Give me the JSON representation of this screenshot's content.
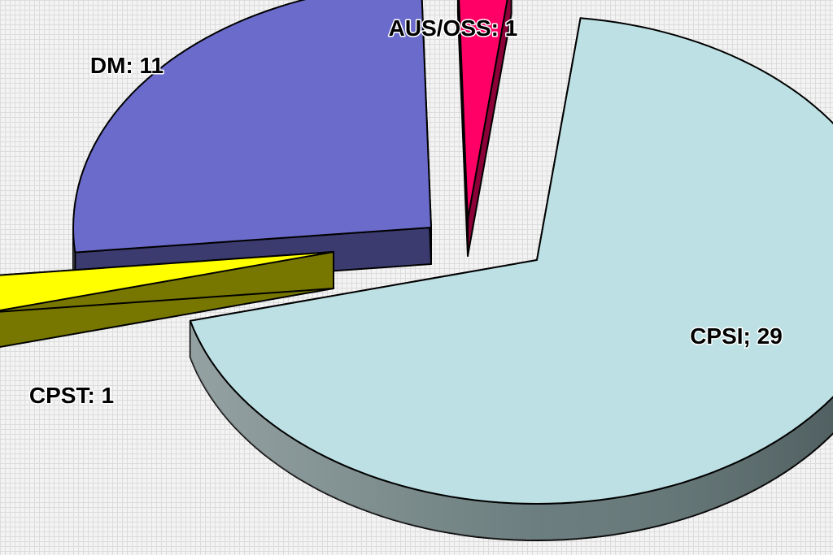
{
  "chart_data": {
    "type": "pie",
    "style": "3d-exploded",
    "title": "",
    "slices": [
      {
        "label": "CPSI",
        "value": 29,
        "display": "CPSI; 29",
        "color": "#bde0e4",
        "side_color": "#5b6f70",
        "highlight_side": "#a9c4c6"
      },
      {
        "label": "CPST",
        "value": 1,
        "display": "CPST: 1",
        "color": "#ffff00",
        "side_color": "#666600",
        "highlight_side": "#777700"
      },
      {
        "label": "DM",
        "value": 11,
        "display": "DM: 11",
        "color": "#6b6bcc",
        "side_color": "#2e2e5e",
        "highlight_side": "#3b3b70"
      },
      {
        "label": "AUS/OSS",
        "value": 1,
        "display": "AUS/OSS: 1",
        "color": "#ff0066",
        "side_color": "#7a0030",
        "highlight_side": "#8c0038"
      }
    ],
    "legend": false,
    "grid": false
  }
}
